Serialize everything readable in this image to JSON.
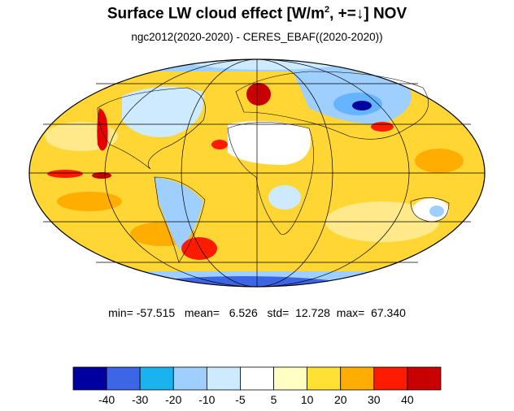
{
  "title": {
    "prefix": "Surface LW cloud effect [W/m",
    "superscript": "2",
    "suffix": ", +=↓]  NOV"
  },
  "subtitle": "ngc2012(2020-2020) - CERES_EBAF((2020-2020))",
  "stats": {
    "min_label": "min=",
    "min": "-57.515",
    "mean_label": "mean=",
    "mean": "6.526",
    "std_label": "std=",
    "std": "12.728",
    "max_label": "max=",
    "max": "67.340"
  },
  "map": {
    "projection": "mollweide",
    "ocean_base_color": "#ffd633",
    "land_outline_color": "#000000",
    "regions": [
      {
        "name": "west-coast-north-america",
        "color": "#e60000"
      },
      {
        "name": "western-europe",
        "color": "#c80000"
      },
      {
        "name": "southern-south-america",
        "color": "#ff1a00"
      },
      {
        "name": "tropical-pacific-band",
        "color": "#ff1a00"
      },
      {
        "name": "siberia",
        "color": "#3d66e6"
      },
      {
        "name": "antarctica",
        "color": "#66b3ff"
      },
      {
        "name": "arctic",
        "color": "#9ecfff"
      },
      {
        "name": "sahara",
        "color": "#ffffff"
      }
    ]
  },
  "colorbar": {
    "colors": [
      "#0000a0",
      "#3d66e6",
      "#1ab3f0",
      "#9ecfff",
      "#cdeaff",
      "#ffffff",
      "#ffffc4",
      "#ffe133",
      "#ffad00",
      "#ff1a00",
      "#c80000"
    ],
    "ticks": [
      "-40",
      "-30",
      "-20",
      "-10",
      "-5",
      "5",
      "10",
      "20",
      "30",
      "40"
    ]
  }
}
